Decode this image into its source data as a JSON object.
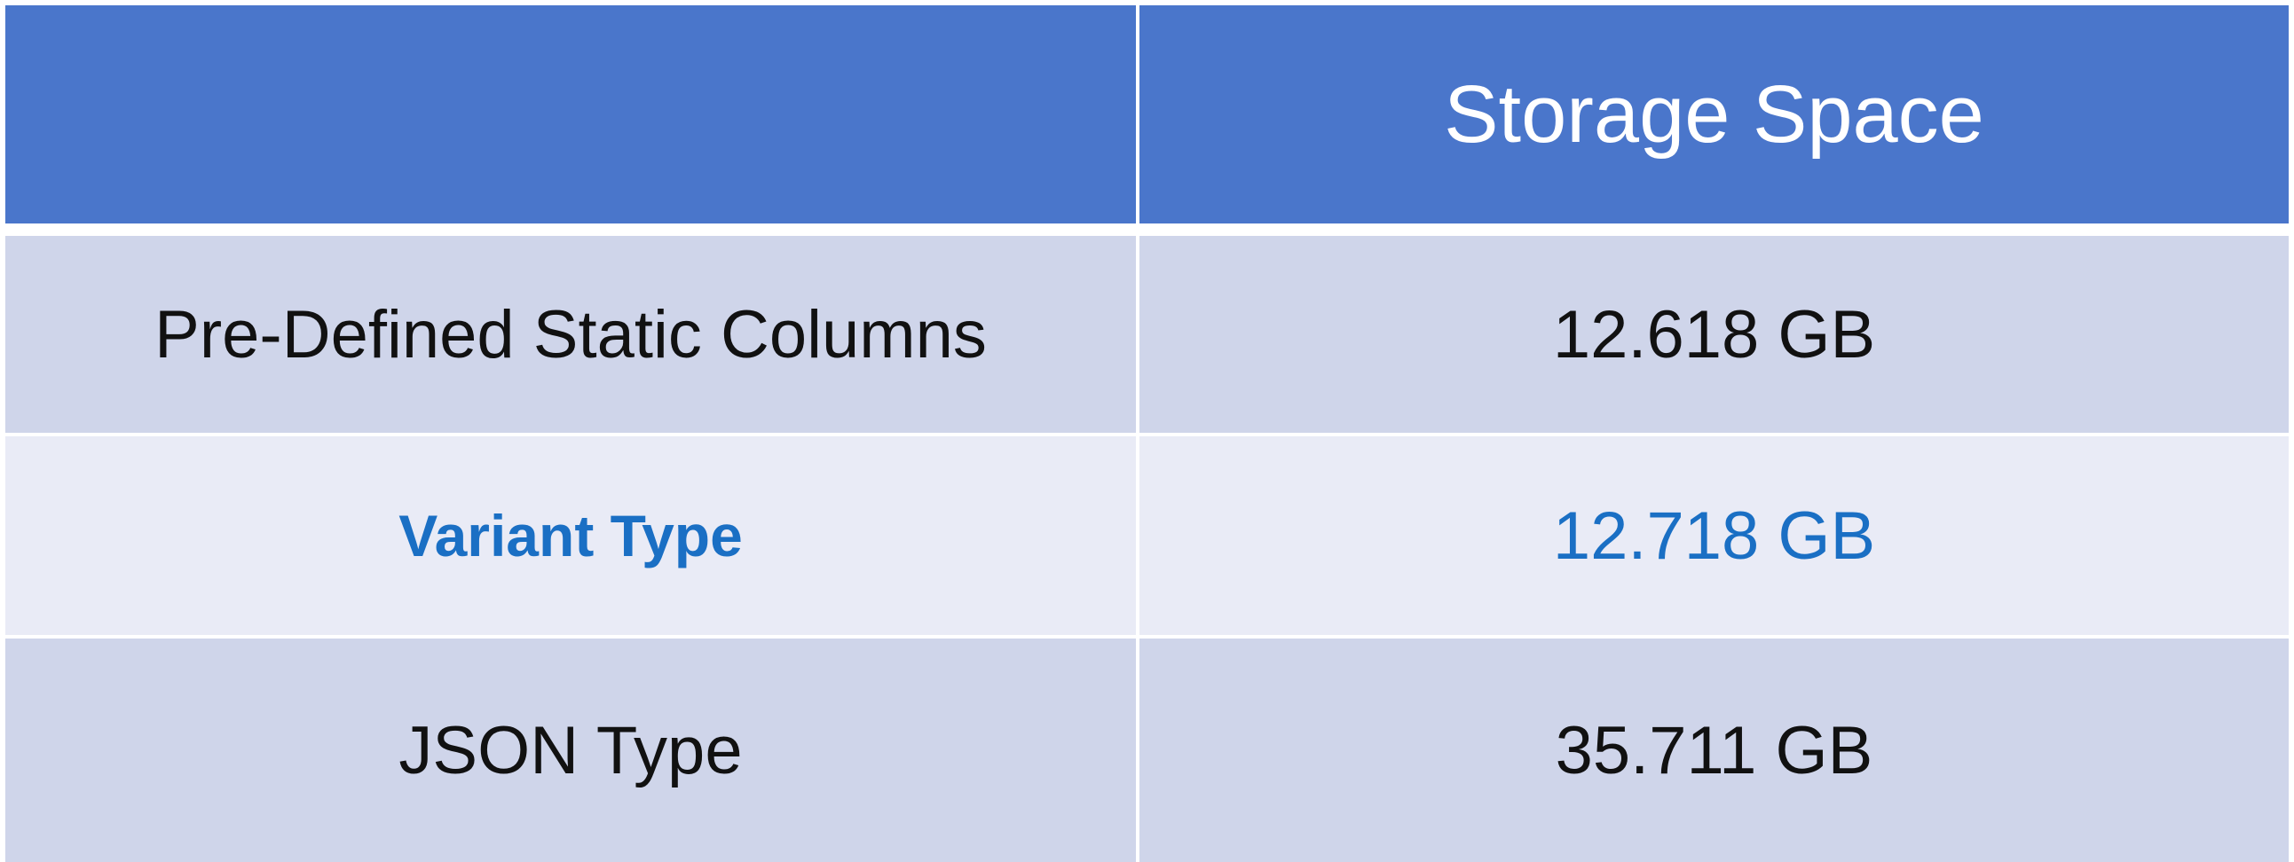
{
  "table": {
    "header": {
      "col_1": "",
      "col_2": "Storage Space"
    },
    "rows": [
      {
        "label": "Pre-Defined Static Columns",
        "value": "12.618 GB"
      },
      {
        "label": "Variant Type",
        "value": "12.718 GB"
      },
      {
        "label": "JSON Type",
        "value": "35.711 GB"
      }
    ]
  },
  "colors": {
    "header_bg": "#4a76cb",
    "row_bg_dark": "#cfd5ea",
    "row_bg_light": "#e9ebf6",
    "highlight_text": "#1a6fc4"
  }
}
